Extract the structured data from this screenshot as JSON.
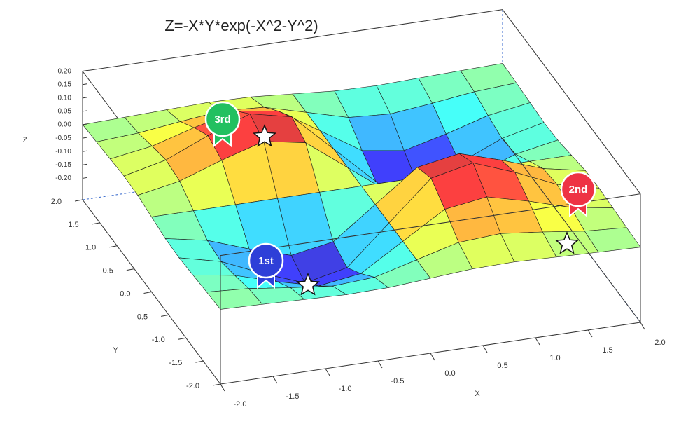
{
  "chart_data": {
    "type": "surface",
    "title": "Z=-X*Y*exp(-X^2-Y^2)",
    "x_label": "X",
    "y_label": "Y",
    "z_label": "Z",
    "colormap": "jet",
    "x": [
      -2,
      -1.6,
      -1.2,
      -0.8,
      -0.4,
      0,
      0.4,
      0.8,
      1.2,
      1.6,
      2
    ],
    "y": [
      -2,
      -1.6,
      -1.2,
      -0.8,
      -0.4,
      0,
      0.4,
      0.8,
      1.2,
      1.6,
      2
    ],
    "z": [
      [
        -0.001,
        -0.005,
        -0.01,
        -0.015,
        -0.012,
        0,
        0.012,
        0.015,
        0.01,
        0.005,
        0.001
      ],
      [
        -0.005,
        -0.015,
        -0.035,
        -0.052,
        -0.042,
        0,
        0.042,
        0.052,
        0.035,
        0.015,
        0.005
      ],
      [
        -0.01,
        -0.035,
        -0.081,
        -0.12,
        -0.097,
        0,
        0.097,
        0.12,
        0.081,
        0.035,
        0.01
      ],
      [
        -0.015,
        -0.052,
        -0.12,
        -0.178,
        -0.144,
        0,
        0.144,
        0.178,
        0.12,
        0.052,
        0.015
      ],
      [
        -0.012,
        -0.042,
        -0.097,
        -0.144,
        -0.116,
        0,
        0.116,
        0.144,
        0.097,
        0.042,
        0.012
      ],
      [
        0,
        0,
        0,
        0,
        0,
        0,
        0,
        0,
        0,
        0,
        0
      ],
      [
        0.012,
        0.042,
        0.097,
        0.144,
        0.116,
        0,
        -0.116,
        -0.144,
        -0.097,
        -0.042,
        -0.012
      ],
      [
        0.015,
        0.052,
        0.12,
        0.178,
        0.144,
        0,
        -0.144,
        -0.178,
        -0.12,
        -0.052,
        -0.015
      ],
      [
        0.01,
        0.035,
        0.081,
        0.12,
        0.097,
        0,
        -0.097,
        -0.12,
        -0.081,
        -0.035,
        -0.01
      ],
      [
        0.005,
        0.015,
        0.035,
        0.052,
        0.042,
        0,
        -0.042,
        -0.052,
        -0.035,
        -0.015,
        -0.005
      ],
      [
        0.001,
        0.005,
        0.01,
        0.015,
        0.012,
        0,
        -0.012,
        -0.015,
        -0.01,
        -0.005,
        -0.001
      ]
    ],
    "xlim": [
      -2,
      2
    ],
    "ylim": [
      -2,
      2
    ],
    "zlim": [
      -0.28,
      0.2
    ],
    "xticks": [
      {
        "value": -2,
        "label": "-2.0"
      },
      {
        "value": -1.5,
        "label": "-1.5"
      },
      {
        "value": -1,
        "label": "-1.0"
      },
      {
        "value": -0.5,
        "label": "-0.5"
      },
      {
        "value": 0,
        "label": "0.0"
      },
      {
        "value": 0.5,
        "label": "0.5"
      },
      {
        "value": 1,
        "label": "1.0"
      },
      {
        "value": 1.5,
        "label": "1.5"
      },
      {
        "value": 2,
        "label": "2.0"
      }
    ],
    "yticks": [
      {
        "value": -2,
        "label": "-2.0"
      },
      {
        "value": -1.5,
        "label": "-1.5"
      },
      {
        "value": -1,
        "label": "-1.0"
      },
      {
        "value": -0.5,
        "label": "-0.5"
      },
      {
        "value": 0,
        "label": "0.0"
      },
      {
        "value": 0.5,
        "label": "0.5"
      },
      {
        "value": 1,
        "label": "1.0"
      },
      {
        "value": 1.5,
        "label": "1.5"
      },
      {
        "value": 2,
        "label": "2.0"
      }
    ],
    "zticks": [
      {
        "value": 0.2,
        "label": "0.20"
      },
      {
        "value": 0.15,
        "label": "0.15"
      },
      {
        "value": 0.1,
        "label": "0.10"
      },
      {
        "value": 0.05,
        "label": "0.05"
      },
      {
        "value": 0,
        "label": "0.00"
      },
      {
        "value": -0.05,
        "label": "-0.05"
      },
      {
        "value": -0.1,
        "label": "-0.10"
      },
      {
        "value": -0.15,
        "label": "-0.15"
      },
      {
        "value": -0.2,
        "label": "-0.20"
      }
    ],
    "annotations": [
      {
        "text": "1st",
        "color": "#2e3fd8"
      },
      {
        "text": "2nd",
        "color": "#ee3344"
      },
      {
        "text": "3rd",
        "color": "#22c060"
      }
    ]
  }
}
